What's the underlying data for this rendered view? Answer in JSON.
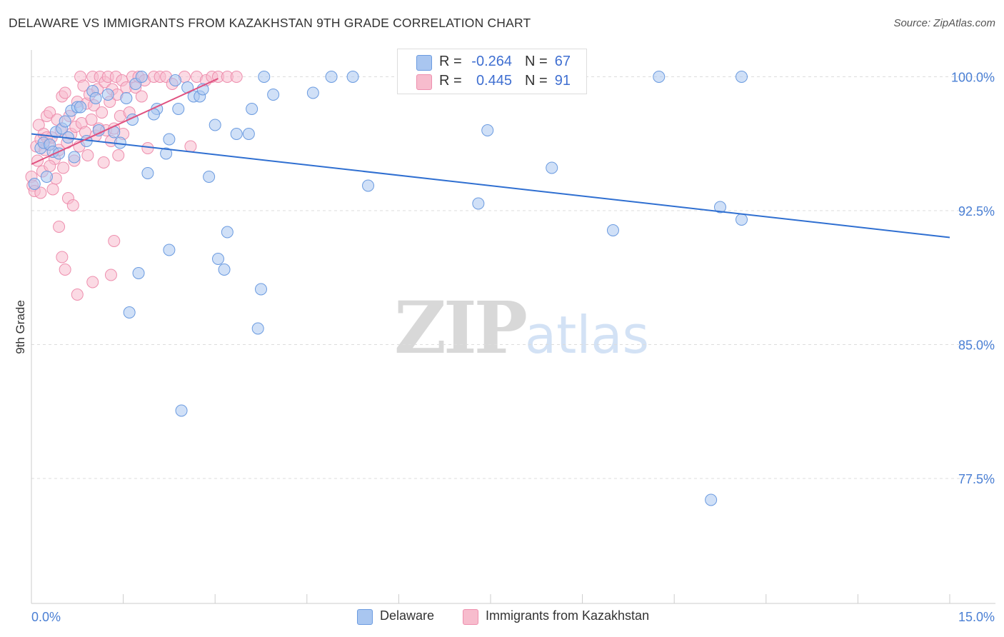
{
  "header": {
    "title": "DELAWARE VS IMMIGRANTS FROM KAZAKHSTAN 9TH GRADE CORRELATION CHART",
    "source": "Source: ZipAtlas.com"
  },
  "legend": {
    "rows": [
      {
        "r_label": "R =",
        "r_value": "-0.264",
        "n_label": "N =",
        "n_value": "67"
      },
      {
        "r_label": "R =",
        "r_value": "0.445",
        "n_label": "N =",
        "n_value": "91"
      }
    ]
  },
  "bottom_legend": [
    "Delaware",
    "Immigrants from Kazakhstan"
  ],
  "watermark": {
    "part1": "ZIP",
    "part2": "atlas"
  },
  "colors": {
    "blue_fill": "#a9c6f0",
    "blue_stroke": "#6b9be0",
    "blue_line": "#2f6fd1",
    "pink_fill": "#f7bccd",
    "pink_stroke": "#ee8fae",
    "pink_line": "#e0507f",
    "grid": "#dddddd",
    "tick_text": "#4a7fd4"
  },
  "chart_data": {
    "type": "scatter",
    "title": "DELAWARE VS IMMIGRANTS FROM KAZAKHSTAN 9TH GRADE CORRELATION CHART",
    "xlabel": "",
    "ylabel": "9th Grade",
    "xlim": [
      0,
      15
    ],
    "ylim": [
      70.5,
      101.5
    ],
    "x_tick_labels": [
      "0.0%",
      "15.0%"
    ],
    "y_ticks": [
      77.5,
      85.0,
      92.5,
      100.0
    ],
    "y_tick_labels": [
      "77.5%",
      "85.0%",
      "92.5%",
      "100.0%"
    ],
    "grid": true,
    "legend_position": "top-center",
    "series": [
      {
        "name": "Delaware",
        "color": "#a9c6f0",
        "trend": {
          "x": [
            0.0,
            15.0
          ],
          "y": [
            96.8,
            91.0
          ]
        },
        "points": [
          [
            0.05,
            94.0
          ],
          [
            0.15,
            96.0
          ],
          [
            0.2,
            96.3
          ],
          [
            0.25,
            94.4
          ],
          [
            0.3,
            96.2
          ],
          [
            0.35,
            95.8
          ],
          [
            0.4,
            96.9
          ],
          [
            0.5,
            97.1
          ],
          [
            0.6,
            96.6
          ],
          [
            0.65,
            98.1
          ],
          [
            0.7,
            95.5
          ],
          [
            0.75,
            98.3
          ],
          [
            0.8,
            98.3
          ],
          [
            0.9,
            96.4
          ],
          [
            1.0,
            99.2
          ],
          [
            1.05,
            98.8
          ],
          [
            1.35,
            96.9
          ],
          [
            1.45,
            96.3
          ],
          [
            1.55,
            98.8
          ],
          [
            1.65,
            97.6
          ],
          [
            1.7,
            99.6
          ],
          [
            1.8,
            100.0
          ],
          [
            1.9,
            94.6
          ],
          [
            2.05,
            98.2
          ],
          [
            2.2,
            95.7
          ],
          [
            2.25,
            96.5
          ],
          [
            2.35,
            99.8
          ],
          [
            2.4,
            98.2
          ],
          [
            2.55,
            99.4
          ],
          [
            2.65,
            98.9
          ],
          [
            2.75,
            98.9
          ],
          [
            2.8,
            99.3
          ],
          [
            2.9,
            94.4
          ],
          [
            3.0,
            97.3
          ],
          [
            3.2,
            91.3
          ],
          [
            3.35,
            96.8
          ],
          [
            3.55,
            96.8
          ],
          [
            3.6,
            98.2
          ],
          [
            3.8,
            100.0
          ],
          [
            3.95,
            99.0
          ],
          [
            4.6,
            99.1
          ],
          [
            4.9,
            100.0
          ],
          [
            5.25,
            100.0
          ],
          [
            6.25,
            100.0
          ],
          [
            5.5,
            93.9
          ],
          [
            7.45,
            97.0
          ],
          [
            7.3,
            92.9
          ],
          [
            8.5,
            94.9
          ],
          [
            9.5,
            91.4
          ],
          [
            10.25,
            100.0
          ],
          [
            11.6,
            100.0
          ],
          [
            11.25,
            92.7
          ],
          [
            11.6,
            92.0
          ],
          [
            1.75,
            89.0
          ],
          [
            2.25,
            90.3
          ],
          [
            3.05,
            89.8
          ],
          [
            3.15,
            89.2
          ],
          [
            3.75,
            88.1
          ],
          [
            1.6,
            86.8
          ],
          [
            3.7,
            85.9
          ],
          [
            2.45,
            81.3
          ],
          [
            11.1,
            76.3
          ],
          [
            1.1,
            97.0
          ],
          [
            0.55,
            97.5
          ],
          [
            1.25,
            99.0
          ],
          [
            0.45,
            95.7
          ],
          [
            2.0,
            97.9
          ]
        ]
      },
      {
        "name": "Immigrants from Kazakhstan",
        "color": "#f7bccd",
        "trend": {
          "x": [
            0.0,
            3.05
          ],
          "y": [
            95.1,
            99.9
          ]
        },
        "points": [
          [
            0.0,
            94.4
          ],
          [
            0.02,
            93.9
          ],
          [
            0.05,
            93.6
          ],
          [
            0.08,
            96.1
          ],
          [
            0.1,
            95.3
          ],
          [
            0.12,
            97.3
          ],
          [
            0.15,
            96.5
          ],
          [
            0.18,
            94.7
          ],
          [
            0.2,
            96.8
          ],
          [
            0.22,
            95.9
          ],
          [
            0.25,
            97.8
          ],
          [
            0.28,
            96.2
          ],
          [
            0.3,
            98.0
          ],
          [
            0.33,
            96.6
          ],
          [
            0.35,
            93.7
          ],
          [
            0.38,
            95.4
          ],
          [
            0.4,
            94.3
          ],
          [
            0.42,
            97.6
          ],
          [
            0.45,
            95.9
          ],
          [
            0.48,
            97.0
          ],
          [
            0.5,
            98.9
          ],
          [
            0.52,
            94.9
          ],
          [
            0.55,
            99.1
          ],
          [
            0.58,
            96.3
          ],
          [
            0.6,
            93.2
          ],
          [
            0.62,
            97.8
          ],
          [
            0.65,
            96.8
          ],
          [
            0.68,
            92.8
          ],
          [
            0.7,
            95.3
          ],
          [
            0.72,
            97.2
          ],
          [
            0.75,
            98.6
          ],
          [
            0.78,
            96.1
          ],
          [
            0.8,
            100.0
          ],
          [
            0.82,
            97.4
          ],
          [
            0.85,
            99.5
          ],
          [
            0.88,
            96.9
          ],
          [
            0.9,
            98.5
          ],
          [
            0.92,
            95.6
          ],
          [
            0.95,
            99.0
          ],
          [
            0.98,
            97.6
          ],
          [
            1.0,
            100.0
          ],
          [
            1.02,
            98.4
          ],
          [
            1.05,
            96.7
          ],
          [
            1.08,
            99.3
          ],
          [
            1.1,
            97.1
          ],
          [
            1.12,
            100.0
          ],
          [
            1.15,
            98.0
          ],
          [
            1.18,
            95.2
          ],
          [
            1.2,
            99.7
          ],
          [
            1.22,
            97.0
          ],
          [
            1.25,
            100.0
          ],
          [
            1.28,
            98.6
          ],
          [
            1.3,
            96.4
          ],
          [
            1.32,
            99.3
          ],
          [
            1.35,
            97.1
          ],
          [
            1.38,
            100.0
          ],
          [
            1.4,
            99.0
          ],
          [
            1.42,
            95.6
          ],
          [
            1.45,
            97.8
          ],
          [
            1.48,
            99.8
          ],
          [
            1.5,
            96.8
          ],
          [
            1.55,
            99.4
          ],
          [
            1.6,
            98.0
          ],
          [
            1.65,
            100.0
          ],
          [
            1.7,
            99.4
          ],
          [
            1.75,
            100.0
          ],
          [
            1.8,
            98.9
          ],
          [
            1.85,
            99.8
          ],
          [
            1.9,
            96.0
          ],
          [
            2.0,
            100.0
          ],
          [
            2.1,
            100.0
          ],
          [
            2.2,
            100.0
          ],
          [
            2.3,
            99.6
          ],
          [
            2.5,
            100.0
          ],
          [
            2.6,
            96.1
          ],
          [
            2.7,
            100.0
          ],
          [
            2.85,
            99.8
          ],
          [
            2.95,
            100.0
          ],
          [
            3.05,
            100.0
          ],
          [
            3.2,
            100.0
          ],
          [
            3.35,
            100.0
          ],
          [
            0.45,
            91.6
          ],
          [
            0.5,
            89.9
          ],
          [
            0.55,
            89.2
          ],
          [
            0.75,
            87.8
          ],
          [
            1.0,
            88.5
          ],
          [
            1.3,
            88.9
          ],
          [
            1.35,
            90.8
          ],
          [
            0.3,
            95.0
          ],
          [
            0.15,
            93.5
          ],
          [
            0.25,
            96.6
          ]
        ]
      }
    ]
  }
}
